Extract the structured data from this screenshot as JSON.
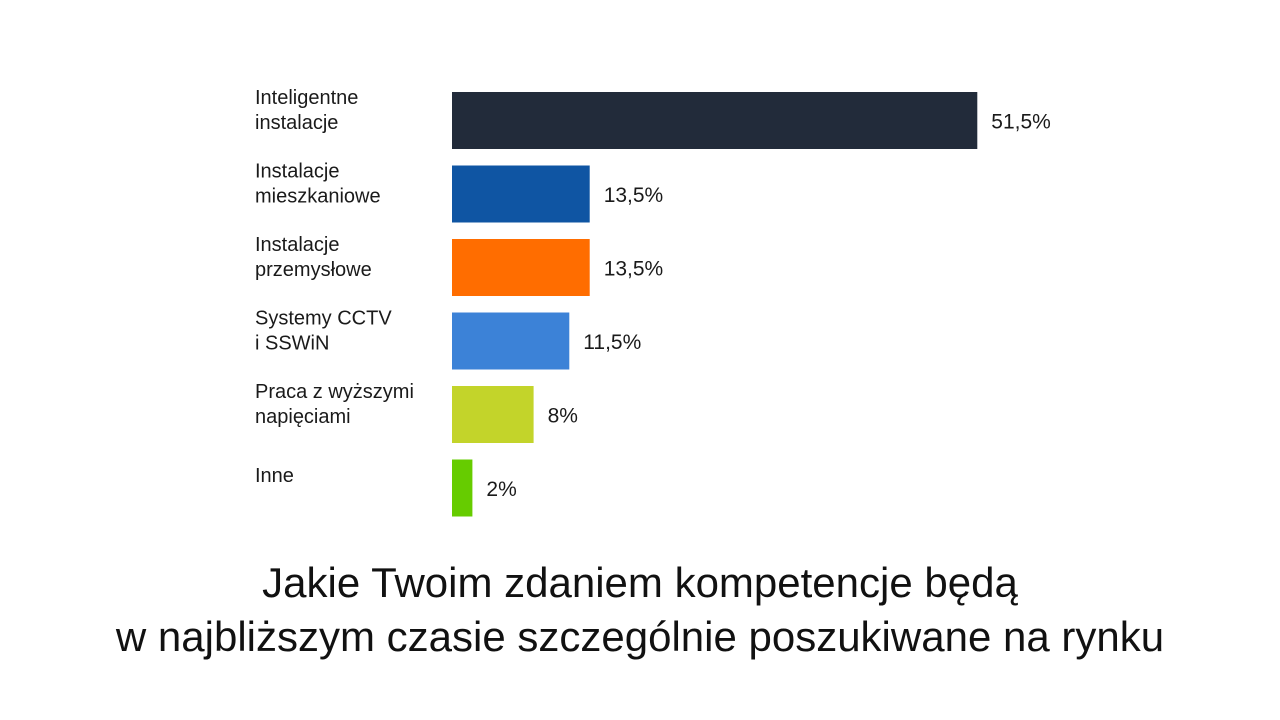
{
  "chart_data": {
    "type": "bar",
    "orientation": "horizontal",
    "title_lines": [
      "Jakie Twoim zdaniem kompetencje będą",
      "w najbliższym czasie szczególnie poszukiwane na rynku"
    ],
    "categories": [
      [
        "Inteligentne",
        "instalacje"
      ],
      [
        "Instalacje",
        "mieszkaniowe"
      ],
      [
        "Instalacje",
        "przemysłowe"
      ],
      [
        "Systemy CCTV",
        "i SSWiN"
      ],
      [
        "Praca z wyższymi",
        "napięciami"
      ],
      [
        "Inne"
      ]
    ],
    "values": [
      51.5,
      13.5,
      13.5,
      11.5,
      8,
      2
    ],
    "value_labels": [
      "51,5%",
      "13,5%",
      "13,5%",
      "11,5%",
      "8%",
      "2%"
    ],
    "colors": [
      "#222b3a",
      "#0f55a3",
      "#ff6d00",
      "#3c82d7",
      "#c3d42a",
      "#66cc00"
    ],
    "unit": "%",
    "grid": false,
    "legend": "none"
  }
}
